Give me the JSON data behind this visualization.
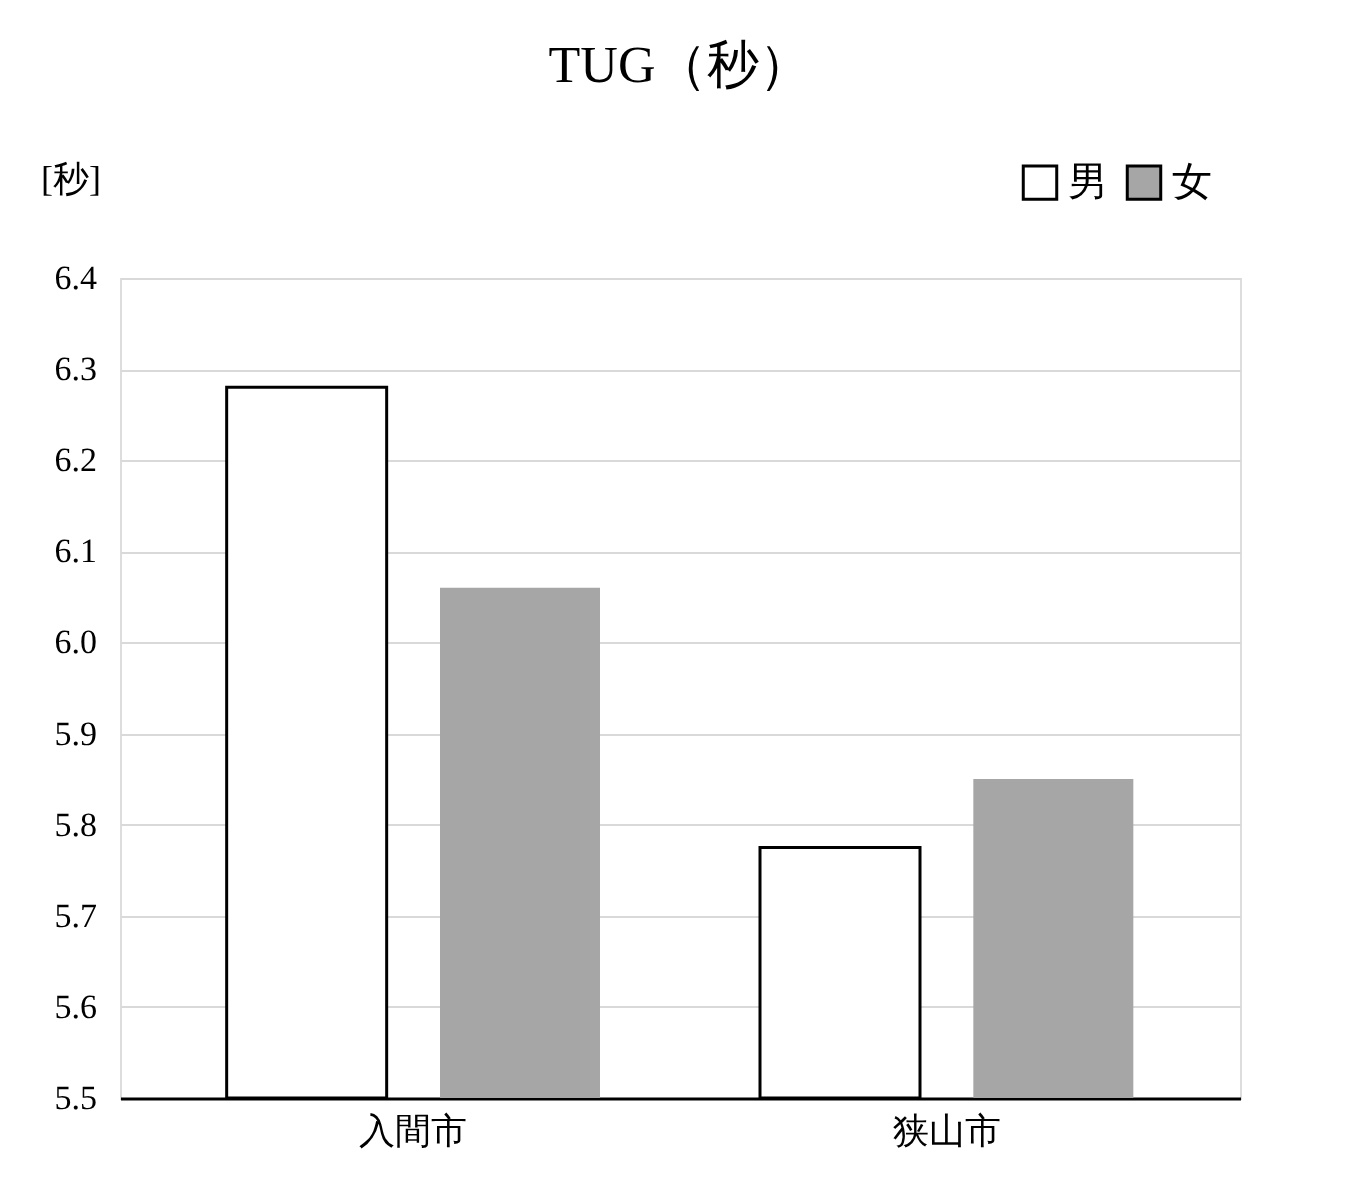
{
  "chart_data": {
    "type": "bar",
    "title": "TUG（秒）",
    "ylabel": "[秒]",
    "categories": [
      "入間市",
      "狭山市"
    ],
    "series": [
      {
        "name": "男",
        "color": "#ffffff",
        "values": [
          6.28,
          5.775
        ]
      },
      {
        "name": "女",
        "color": "#a6a6a6",
        "values": [
          6.06,
          5.85
        ]
      }
    ],
    "ylim": [
      5.5,
      6.4
    ],
    "yticks": [
      5.5,
      5.6,
      5.7,
      5.8,
      5.9,
      {
        "value": 6.0,
        "label": "6.0"
      },
      6.1,
      6.2,
      6.3,
      6.4
    ],
    "grid": "y",
    "legend": "top right"
  }
}
